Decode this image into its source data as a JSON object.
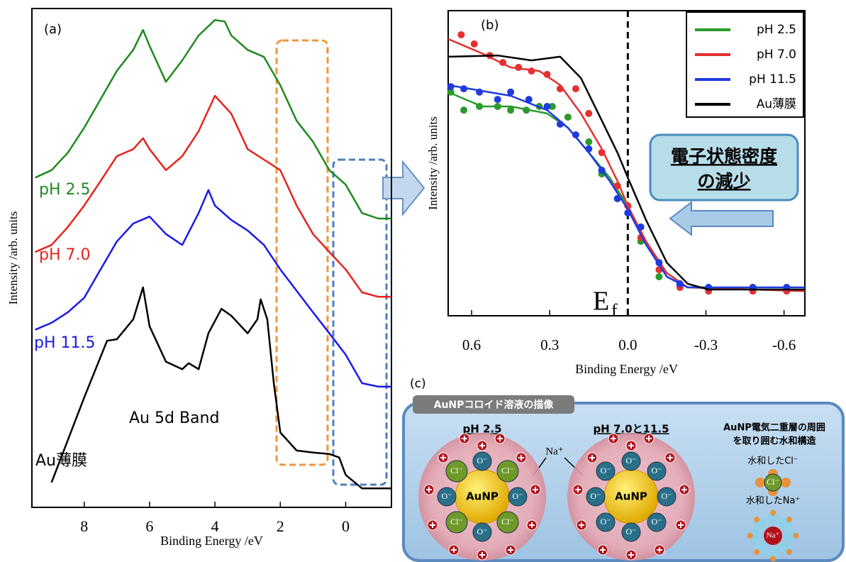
{
  "chart_data": [
    {
      "type": "line",
      "panel_label": "(a)",
      "xlabel": "Binding Energy /eV",
      "ylabel": "Intensity /arb. units",
      "xlim": [
        9.6,
        -1.4
      ],
      "xticks": [
        8,
        6,
        4,
        2,
        0
      ],
      "ylim": [
        0,
        100
      ],
      "annotations": [
        "Au 5d Band"
      ],
      "series": [
        {
          "name": "pH 2.5",
          "color": "#1e8a1e",
          "x": [
            9.5,
            9,
            8.5,
            8,
            7.5,
            7,
            6.5,
            6.2,
            6,
            5.5,
            5,
            4.5,
            4,
            3.7,
            3.5,
            3,
            2.5,
            2,
            1.5,
            1,
            0.5,
            0,
            -0.5,
            -1,
            -1.4
          ],
          "values": [
            66.1,
            67.6,
            71.1,
            76.1,
            81.8,
            87.5,
            91.7,
            95.7,
            92.5,
            85.3,
            89.6,
            94.6,
            97.7,
            97.4,
            94.6,
            91.7,
            90.3,
            84.6,
            77.5,
            73.3,
            67.6,
            64.7,
            59.0,
            57.9,
            57.9
          ]
        },
        {
          "name": "pH 7.0",
          "color": "#e8231e",
          "x": [
            9.5,
            9,
            8.5,
            8,
            7.5,
            7,
            6.5,
            6.2,
            6,
            5.5,
            5,
            4.5,
            4,
            3.5,
            3,
            2.5,
            2,
            1.5,
            1,
            0.5,
            0,
            -0.5,
            -1,
            -1.4
          ],
          "values": [
            51.2,
            52.6,
            56.2,
            60.5,
            65.4,
            70.4,
            71.8,
            74.0,
            71.8,
            67.6,
            70.4,
            75.4,
            82.5,
            78.9,
            71.8,
            69.7,
            67.6,
            60.5,
            54.8,
            51.2,
            47.7,
            43.1,
            42.2,
            42.2
          ]
        },
        {
          "name": "pH 11.5",
          "color": "#1a1ae6",
          "x": [
            9.5,
            9,
            8.5,
            8,
            7.5,
            7,
            6.5,
            6,
            5.5,
            5,
            4.5,
            4.2,
            4,
            3.5,
            3,
            2.5,
            2,
            1.5,
            1,
            0.5,
            0,
            -0.5,
            -1,
            -1.4
          ],
          "values": [
            35.6,
            37.0,
            39.1,
            42.0,
            47.7,
            53.3,
            56.9,
            58.3,
            54.8,
            52.6,
            59.0,
            63.6,
            60.5,
            57.6,
            55.5,
            52.6,
            47.7,
            43.4,
            39.1,
            34.9,
            30.6,
            24.9,
            24.2,
            24.2
          ]
        },
        {
          "name": "Au薄膜",
          "color": "#000000",
          "x": [
            9,
            8.5,
            8,
            7.3,
            7,
            6.5,
            6.2,
            6,
            5.5,
            5,
            4.8,
            4.5,
            4.2,
            3.8,
            3.5,
            3,
            2.7,
            2.6,
            2.4,
            2.2,
            2,
            1.5,
            1,
            0.5,
            0.2,
            0,
            -0.5,
            -1.4
          ],
          "values": [
            5.0,
            13.5,
            22.0,
            33.4,
            33.7,
            37.7,
            44.1,
            36.3,
            29.2,
            27.7,
            28.9,
            27.7,
            34.9,
            39.8,
            38.4,
            34.9,
            37.7,
            41.7,
            37.7,
            24.9,
            15.0,
            11.4,
            11.0,
            10.7,
            10.0,
            6.5,
            3.8,
            3.8
          ]
        }
      ]
    },
    {
      "type": "line",
      "panel_label": "(b)",
      "xlabel": "Binding Energy /eV",
      "ylabel": "Intensity /arb. units",
      "xlim": [
        0.69,
        -0.68
      ],
      "xticks": [
        0.6,
        0.3,
        {
          "value": 0,
          "label": "0.0"
        },
        -0.3,
        -0.6
      ],
      "ylim": [
        0,
        100
      ],
      "vline": 0,
      "fermi_label": {
        "main": "E",
        "sub": "f"
      },
      "callout": [
        "電子状態密度",
        "の減少"
      ],
      "legend": "upper right",
      "series": [
        {
          "name": "pH 2.5",
          "color": "#2a9a2a",
          "x": [
            0.69,
            0.56,
            0.45,
            0.31,
            0.23,
            0.15,
            0.07,
            0,
            -0.07,
            -0.15,
            -0.23,
            -0.68
          ],
          "values": [
            73.3,
            68.6,
            68.6,
            66.3,
            61.6,
            53.5,
            45.3,
            36.0,
            24.4,
            12.8,
            9.3,
            8.1
          ],
          "markers": {
            "x": [
              0.68,
              0.63,
              0.57,
              0.5,
              0.45,
              0.39,
              0.34,
              0.29,
              0.23,
              0.15,
              0.1,
              0.04,
              0,
              -0.05,
              -0.12,
              -0.2,
              -0.31,
              -0.48,
              -0.61
            ],
            "values": [
              73.3,
              67.4,
              68.6,
              68.6,
              67.4,
              67.4,
              68.6,
              68.6,
              65.1,
              57.0,
              46.5,
              38.4,
              33.7,
              24.4,
              12.8,
              9.3,
              9.3,
              9.3,
              9.3
            ]
          }
        },
        {
          "name": "pH 7.0",
          "color": "#e53030",
          "x": [
            0.69,
            0.56,
            0.45,
            0.34,
            0.26,
            0.18,
            0.1,
            0.04,
            0,
            -0.07,
            -0.15,
            -0.23,
            -0.68
          ],
          "values": [
            90.7,
            86.0,
            81.4,
            80.2,
            75.6,
            66.3,
            54.7,
            44.2,
            36.0,
            24.4,
            14.0,
            9.3,
            8.1
          ],
          "markers": {
            "x": [
              0.64,
              0.59,
              0.53,
              0.48,
              0.42,
              0.37,
              0.31,
              0.26,
              0.2,
              0.15,
              0.1,
              0.04,
              0,
              -0.05,
              -0.12,
              -0.2,
              -0.31,
              -0.48,
              -0.61
            ],
            "values": [
              92.1,
              89.1,
              85.3,
              83.0,
              81.4,
              80.2,
              79.1,
              74.4,
              74.4,
              66.3,
              53.5,
              42.6,
              36.0,
              25.6,
              15.1,
              9.3,
              8.1,
              8.1,
              8.1
            ]
          }
        },
        {
          "name": "pH 11.5",
          "color": "#1f3be0",
          "x": [
            0.69,
            0.56,
            0.45,
            0.31,
            0.23,
            0.15,
            0.07,
            0,
            -0.07,
            -0.15,
            -0.23,
            -0.68
          ],
          "values": [
            75.6,
            73.7,
            72.1,
            67.4,
            61.6,
            53.5,
            44.2,
            34.9,
            23.3,
            12.8,
            9.3,
            9.3
          ],
          "markers": {
            "x": [
              0.68,
              0.63,
              0.57,
              0.5,
              0.45,
              0.38,
              0.31,
              0.26,
              0.2,
              0.15,
              0.1,
              0.04,
              0,
              -0.05,
              -0.12,
              -0.2,
              -0.31,
              -0.48,
              -0.61
            ],
            "values": [
              75.1,
              74.4,
              73.3,
              70.9,
              73.3,
              70.9,
              68.6,
              62.8,
              59.3,
              54.7,
              47.7,
              38.4,
              33.7,
              29.1,
              17.4,
              10.5,
              9.3,
              9.3,
              9.3
            ]
          }
        },
        {
          "name": "Au薄膜",
          "color": "#000000",
          "x": [
            0.69,
            0.5,
            0.37,
            0.26,
            0.18,
            0.1,
            0.04,
            0,
            -0.07,
            -0.15,
            -0.23,
            -0.31,
            -0.68
          ],
          "values": [
            84.9,
            85.3,
            83.7,
            84.9,
            77.9,
            64.0,
            53.5,
            45.3,
            31.4,
            17.4,
            10.5,
            8.6,
            8.6
          ]
        }
      ]
    }
  ],
  "diagram": {
    "panel_label": "(c)",
    "title": "AuNPコロイド溶液の描像",
    "left_label": "pH 2.5",
    "right_label": "pH 7.0と11.5",
    "core_label": "AuNP",
    "chloride": "Cl⁻",
    "oxide": "O⁻",
    "sodium": "Na⁺",
    "legend_lines": [
      "AuNP電気二重層の周囲",
      "を取り囲む水和構造"
    ],
    "hydrated_cl": "水和したCl⁻",
    "hydrated_na": "水和したNa⁺"
  }
}
